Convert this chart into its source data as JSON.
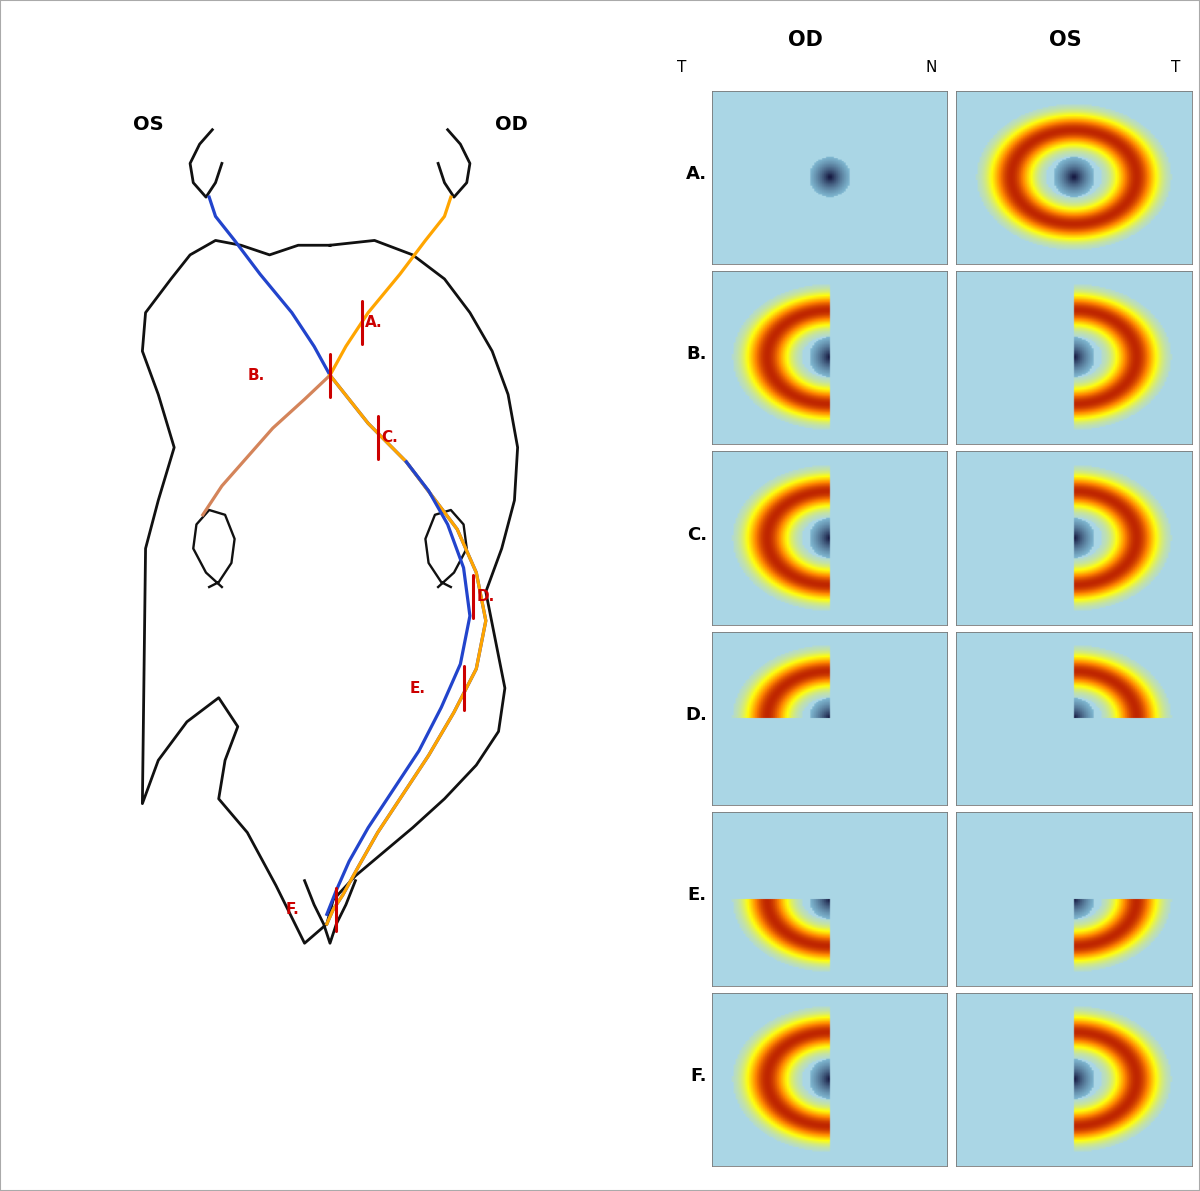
{
  "bg_color": "#ffffff",
  "border_color": "#aaaaaa",
  "oct_bg_rgb": [
    0.67,
    0.84,
    0.9
  ],
  "rows": [
    "A",
    "B",
    "C",
    "D",
    "E",
    "F"
  ],
  "orange": "#FFA500",
  "blue": "#2244cc",
  "peach": "#d4845a",
  "red": "#cc0000",
  "black": "#111111",
  "brain_lw": 2.0,
  "nerve_lw": 2.3,
  "lesion_lw": 2.2
}
